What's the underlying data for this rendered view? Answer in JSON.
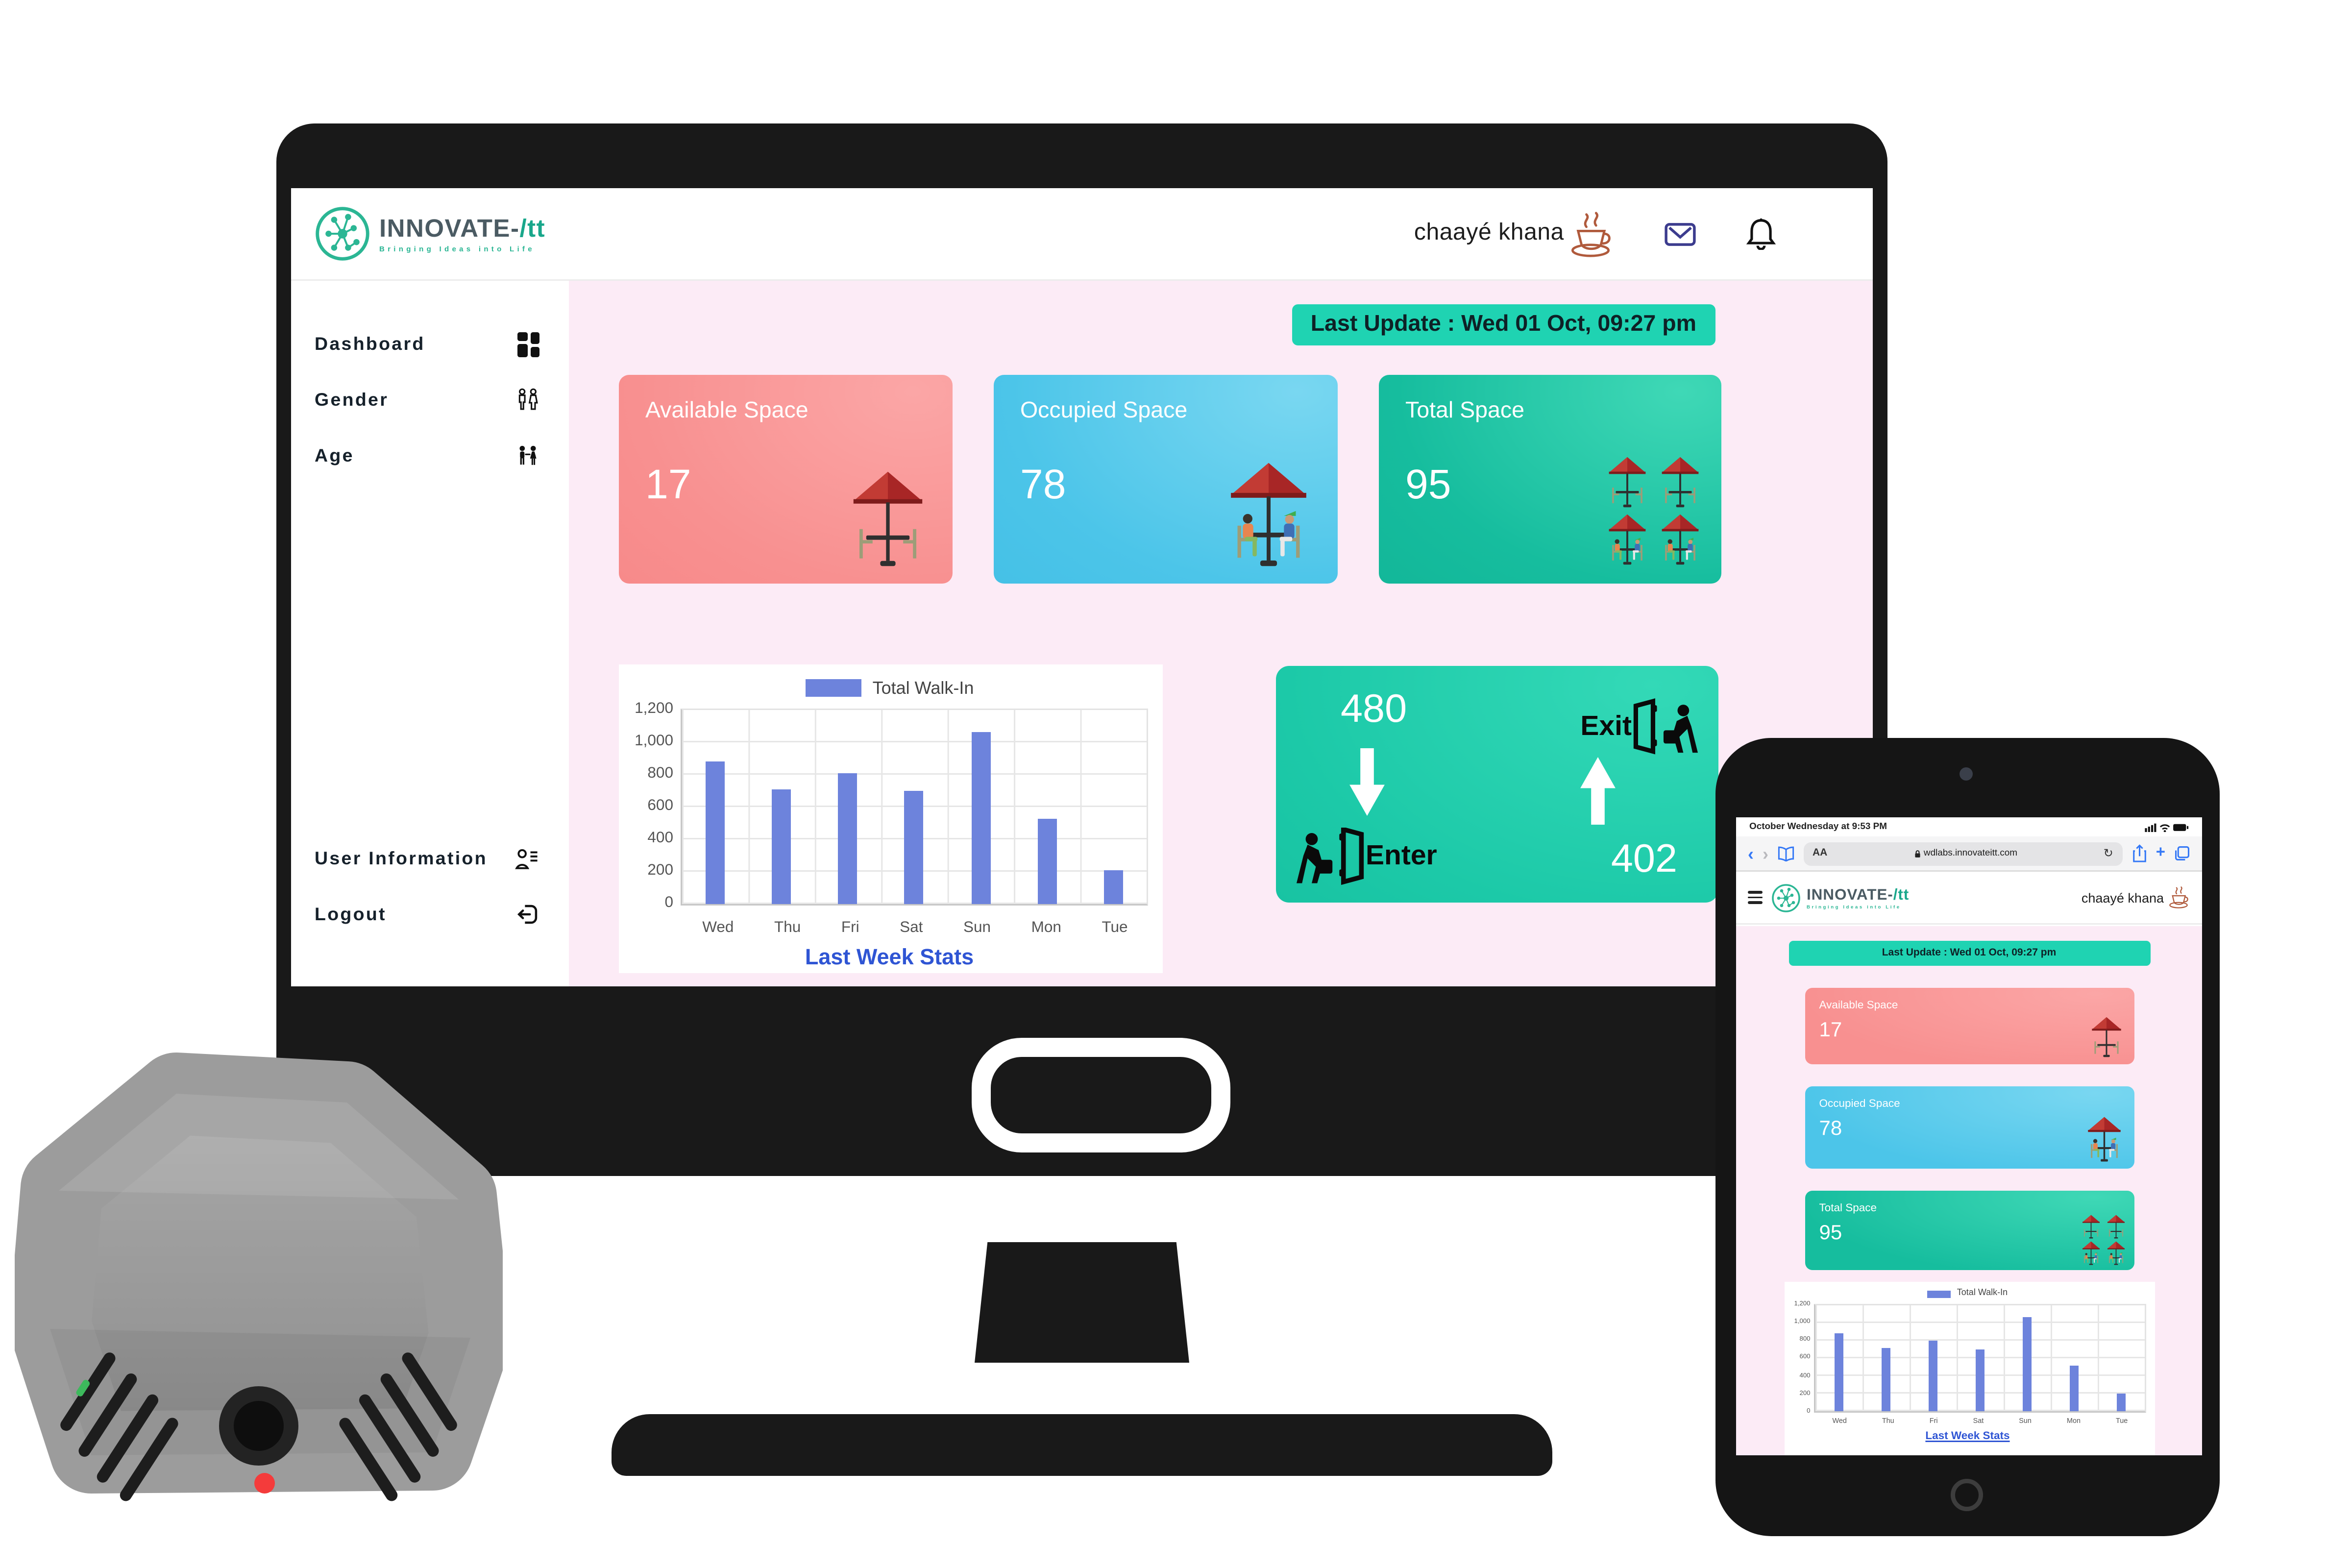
{
  "brand": {
    "title_main": "INNOVATE-",
    "title_accent": "/tt",
    "tagline": "Bringing Ideas into Life",
    "name": "chaayé khana"
  },
  "desktop": {
    "banner": "Last Update : Wed 01 Oct, 09:27 pm",
    "sidebar": {
      "items": [
        {
          "label": "Dashboard",
          "icon": "dashboard-grid-icon"
        },
        {
          "label": "Gender",
          "icon": "gender-figures-icon"
        },
        {
          "label": "Age",
          "icon": "children-icon"
        },
        {
          "label": "User Information",
          "icon": "user-list-icon"
        },
        {
          "label": "Logout",
          "icon": "logout-icon"
        }
      ]
    },
    "cards": [
      {
        "title": "Available Space",
        "value": "17",
        "color": "#f89090"
      },
      {
        "title": "Occupied Space",
        "value": "78",
        "color": "#4cc5e9"
      },
      {
        "title": "Total Space",
        "value": "95",
        "color": "#16bd9e"
      }
    ],
    "flow": {
      "enter_count": "480",
      "enter_label": "Enter",
      "exit_label": "Exit",
      "exit_count": "402"
    }
  },
  "chart_data": {
    "type": "bar",
    "title": "Last Week Stats",
    "legend": "Total Walk-In",
    "categories": [
      "Wed",
      "Thu",
      "Fri",
      "Sat",
      "Sun",
      "Mon",
      "Tue"
    ],
    "values": [
      880,
      710,
      805,
      700,
      1060,
      525,
      205
    ],
    "xlabel": "",
    "ylabel": "",
    "ylim": [
      0,
      1200
    ],
    "yticks": [
      "1,200",
      "1,000",
      "800",
      "600",
      "400",
      "200",
      "0"
    ],
    "grid": true,
    "legend_position": "top",
    "bar_color": "#6d83dc"
  },
  "tablet": {
    "status_left": "October Wednesday at 9:53 PM",
    "browser": {
      "back": "‹",
      "forward": "›",
      "reader": "AA",
      "url": "wdlabs.innovateitt.com",
      "refresh": "↻",
      "new_tab": "+"
    }
  },
  "colors": {
    "teal_accent": "#1fd3b2",
    "card_pink": "#f89090",
    "card_blue": "#4cc5e9",
    "card_teal": "#16bd9e",
    "flow_teal": "#1cc9a8",
    "bar_blue": "#6d83dc",
    "chart_title_blue": "#2f55d4",
    "logo_green": "#2bb694",
    "content_bg_pink": "#fcebf6"
  }
}
